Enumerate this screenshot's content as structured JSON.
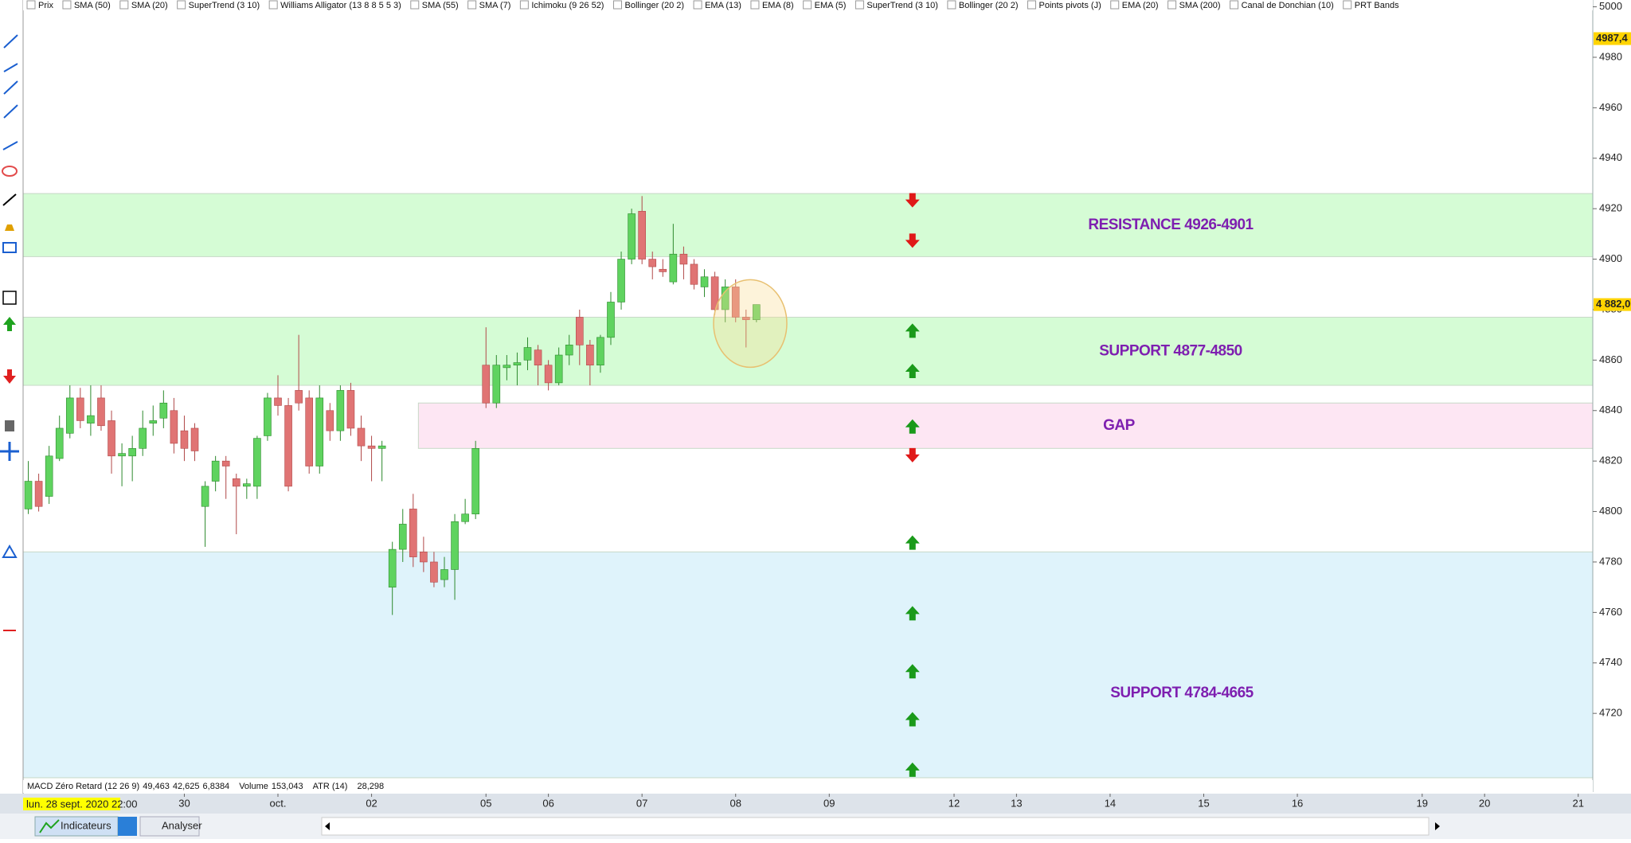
{
  "chart_data": {
    "type": "candlestick",
    "up_color": "#5fd35f",
    "down_color": "#e07474",
    "open": [
      4801,
      4812,
      4806,
      4821,
      4831,
      4845,
      4835,
      4845,
      4836,
      4822,
      4822,
      4825,
      4835,
      4837,
      4840,
      4832,
      4833,
      4802,
      4812,
      4820,
      4813,
      4810,
      4810,
      4830,
      4845,
      4842,
      4848,
      4845,
      4818,
      4840,
      4832,
      4848,
      4833,
      4826,
      4825,
      4770,
      4785,
      4801,
      4784,
      4780,
      4773,
      4777,
      4796,
      4799,
      4858,
      4843,
      4857,
      4858,
      4860,
      4864,
      4858,
      4851,
      4862,
      4877,
      4866,
      4858,
      4869,
      4883,
      4900,
      4919,
      4900,
      4896,
      4891,
      4902,
      4898,
      4889,
      4893,
      4880,
      4889,
      4877,
      4876
    ],
    "high": [
      4820,
      4815,
      4826,
      4838,
      4850,
      4849,
      4850,
      4850,
      4840,
      4827,
      4830,
      4840,
      4842,
      4848,
      4845,
      4838,
      4835,
      4812,
      4822,
      4822,
      4815,
      4813,
      4830,
      4847,
      4854,
      4845,
      4870,
      4848,
      4850,
      4843,
      4850,
      4851,
      4838,
      4830,
      4828,
      4788,
      4801,
      4807,
      4790,
      4784,
      4782,
      4799,
      4805,
      4828,
      4873,
      4862,
      4862,
      4863,
      4869,
      4866,
      4860,
      4865,
      4870,
      4880,
      4868,
      4870,
      4887,
      4903,
      4920,
      4925,
      4903,
      4900,
      4914,
      4905,
      4900,
      4896,
      4895,
      4892,
      4892,
      4880,
      4882
    ],
    "low": [
      4799,
      4800,
      4803,
      4820,
      4829,
      4833,
      4830,
      4832,
      4815,
      4810,
      4812,
      4822,
      4830,
      4833,
      4823,
      4820,
      4820,
      4786,
      4808,
      4805,
      4791,
      4805,
      4805,
      4828,
      4838,
      4808,
      4840,
      4815,
      4815,
      4828,
      4828,
      4830,
      4820,
      4812,
      4812,
      4759,
      4780,
      4778,
      4776,
      4770,
      4770,
      4765,
      4795,
      4797,
      4841,
      4841,
      4852,
      4850,
      4856,
      4850,
      4848,
      4850,
      4858,
      4858,
      4850,
      4855,
      4866,
      4880,
      4898,
      4898,
      4892,
      4893,
      4890,
      4892,
      4888,
      4885,
      4878,
      4875,
      4875,
      4865,
      4875
    ],
    "close": [
      4812,
      4802,
      4822,
      4833,
      4845,
      4836,
      4838,
      4834,
      4822,
      4823,
      4825,
      4833,
      4836,
      4843,
      4827,
      4825,
      4824,
      4810,
      4820,
      4818,
      4810,
      4811,
      4829,
      4845,
      4842,
      4810,
      4843,
      4818,
      4845,
      4832,
      4848,
      4833,
      4826,
      4825,
      4826,
      4785,
      4795,
      4782,
      4780,
      4772,
      4777,
      4796,
      4799,
      4825,
      4843,
      4858,
      4858,
      4859,
      4865,
      4858,
      4851,
      4862,
      4866,
      4866,
      4858,
      4869,
      4883,
      4900,
      4918,
      4900,
      4897,
      4895,
      4902,
      4898,
      4890,
      4893,
      4880,
      4889,
      4877,
      4876,
      4882
    ],
    "xlim": [
      -0.5,
      150.4
    ],
    "xticks": [
      {
        "value": 15,
        "label": "30"
      },
      {
        "value": 24,
        "label": "oct."
      },
      {
        "value": 33,
        "label": "02"
      },
      {
        "value": 44,
        "label": "05"
      },
      {
        "value": 50,
        "label": "06"
      },
      {
        "value": 59,
        "label": "07"
      },
      {
        "value": 68,
        "label": "08"
      },
      {
        "value": 77,
        "label": "09"
      },
      {
        "value": 89,
        "label": "12"
      },
      {
        "value": 95,
        "label": "13"
      },
      {
        "value": 104,
        "label": "14"
      },
      {
        "value": 113,
        "label": "15"
      },
      {
        "value": 122,
        "label": "16"
      },
      {
        "value": 134,
        "label": "19"
      },
      {
        "value": 140,
        "label": "20"
      },
      {
        "value": 149,
        "label": "21"
      }
    ],
    "ylim": [
      4694.5,
      5002.7
    ],
    "yticks": [
      4720,
      4740,
      4760,
      4780,
      4800,
      4820,
      4840,
      4860,
      4880,
      4900,
      4920,
      4940,
      4960,
      4980,
      5000
    ],
    "high_label": {
      "value": 4987.4,
      "label": "4987,4"
    },
    "last_price": {
      "value": 4882,
      "label": "4 882,00"
    },
    "zones": [
      {
        "label": "RESISTANCE  4926-4901",
        "from": 4901,
        "to": 4926,
        "color": "#d5fcd5"
      },
      {
        "label": "SUPPORT 4877-4850",
        "from": 4850,
        "to": 4877,
        "color": "#d5fcd5"
      },
      {
        "label": "GAP",
        "from": 4825,
        "to": 4843,
        "color": "#fde6f3",
        "start": 37
      },
      {
        "label": "SUPPORT 4784-4665",
        "from": 4665,
        "to": 4784,
        "color": "#dff3fb"
      }
    ],
    "arrow_x": 85,
    "sell_arrows": [
      4923,
      4907,
      4822
    ],
    "buy_arrows": [
      4872,
      4856,
      4834,
      4788,
      4760,
      4737,
      4718,
      4698
    ],
    "highlight": {
      "x": 69.4,
      "y": 4874.5
    },
    "date_label": "lun. 28 sept. 2020 22:00"
  },
  "indicators": [
    "Prix",
    "SMA (50)",
    "SMA (20)",
    "SuperTrend (3 10)",
    "Williams Alligator (13 8 8 5 5 3)",
    "SMA (55)",
    "SMA (7)",
    "Ichimoku (9 26 52)",
    "Bollinger (20 2)",
    "EMA (13)",
    "EMA (8)",
    "EMA (5)",
    "SuperTrend (3 10)",
    "Bollinger (20 2)",
    "Points pivots (J)",
    "EMA (20)",
    "SMA (200)",
    "Canal de Donchian (10)",
    "PRT Bands"
  ],
  "status_items": [
    {
      "text": "MACD Zéro Retard (12 26 9)",
      "color": "#000000"
    },
    {
      "text": "49,463",
      "color": "#1a3ccc"
    },
    {
      "text": "42,625",
      "color": "#d32020"
    },
    {
      "text": "6,8384",
      "color": "#2a9a2a"
    },
    {
      "text": "Volume",
      "color": "#000000"
    },
    {
      "text": "153,043",
      "color": "#2a9a2a"
    },
    {
      "text": "ATR (14)",
      "color": "#000000"
    },
    {
      "text": "28,298",
      "color": "#000000"
    }
  ],
  "toolbar": {
    "indicators_button": "Indicateurs",
    "analyse_button": "Analyser"
  }
}
